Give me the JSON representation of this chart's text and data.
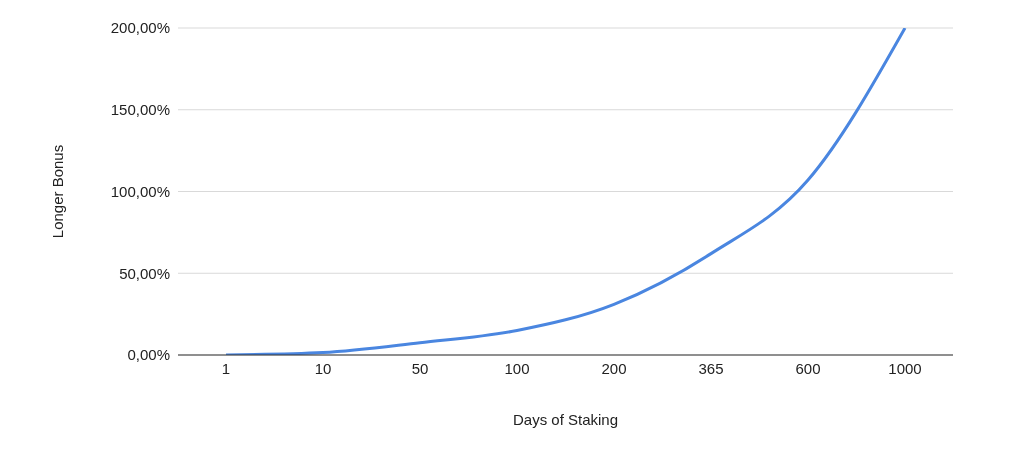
{
  "chart_data": {
    "type": "line",
    "xlabel": "Days of Staking",
    "ylabel": "Longer Bonus",
    "categories": [
      "1",
      "10",
      "50",
      "100",
      "200",
      "365",
      "600",
      "1000"
    ],
    "series": [
      {
        "color": "#4a86e0",
        "values": [
          0,
          1.5,
          7.5,
          15,
          31,
          62,
          107,
          200
        ]
      }
    ],
    "ylim": [
      0,
      200
    ],
    "yticks": [
      {
        "value": 0,
        "label": "0,00%"
      },
      {
        "value": 50,
        "label": "50,00%"
      },
      {
        "value": 100,
        "label": "100,00%"
      },
      {
        "value": 150,
        "label": "150,00%"
      },
      {
        "value": 200,
        "label": "200,00%"
      }
    ],
    "grid": "y",
    "legend": false,
    "marker": "none",
    "line_style": "solid"
  }
}
